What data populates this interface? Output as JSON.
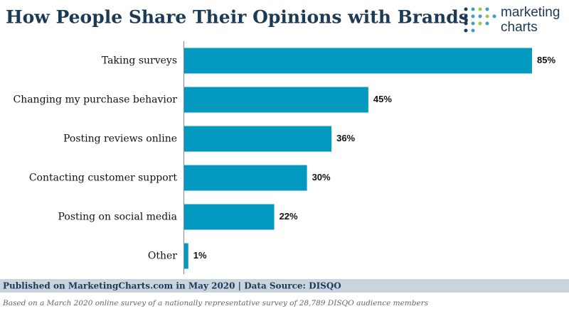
{
  "chart_data": {
    "type": "bar",
    "orientation": "horizontal",
    "title": "How People Share Their Opinions with Brands",
    "categories": [
      "Taking surveys",
      "Changing my purchase behavior",
      "Posting reviews online",
      "Contacting customer support",
      "Posting on social media",
      "Other"
    ],
    "values": [
      85,
      45,
      36,
      30,
      22,
      1
    ],
    "value_labels": [
      "85%",
      "45%",
      "36%",
      "30%",
      "22%",
      "1%"
    ],
    "color": "#0499c1"
  },
  "logo": {
    "line1": "marketing",
    "line2": "charts"
  },
  "footer": {
    "source": "Published on MarketingCharts.com in May 2020 | Data Source: DISQO",
    "note": "Based on a March 2020 online survey of a nationally representative survey of 28,789 DISQO audience members"
  }
}
